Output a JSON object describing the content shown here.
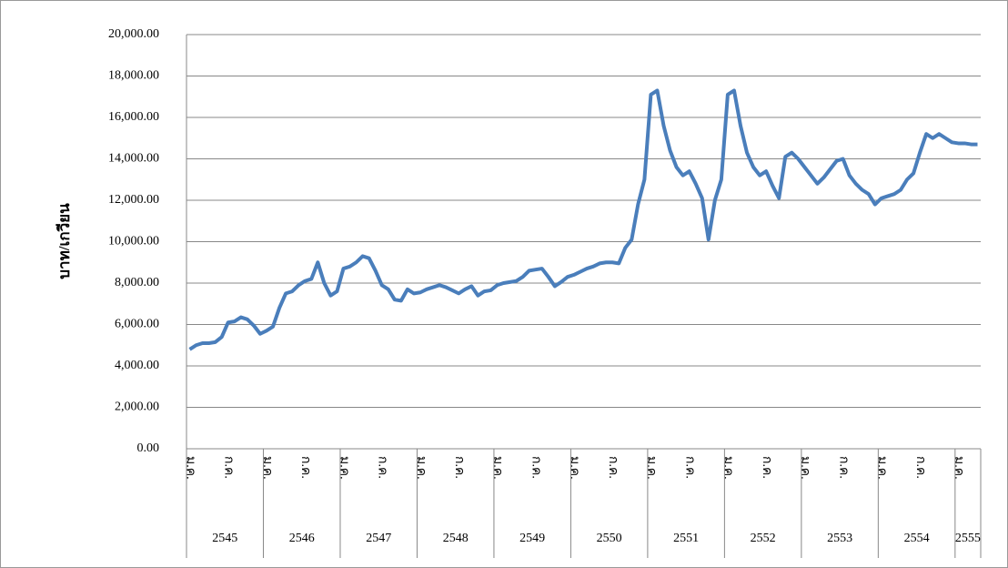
{
  "chart_data": {
    "type": "line",
    "y_label": "บาท/เกวียน",
    "color": "#4a7ebb",
    "grid": true,
    "ylim": [
      0,
      20000
    ],
    "yticks": [
      {
        "value": 0,
        "label": "0.00"
      },
      {
        "value": 2000,
        "label": "2,000.00"
      },
      {
        "value": 4000,
        "label": "4,000.00"
      },
      {
        "value": 6000,
        "label": "6,000.00"
      },
      {
        "value": 8000,
        "label": "8,000.00"
      },
      {
        "value": 10000,
        "label": "10,000.00"
      },
      {
        "value": 12000,
        "label": "12,000.00"
      },
      {
        "value": 14000,
        "label": "14,000.00"
      },
      {
        "value": 16000,
        "label": "16,000.00"
      },
      {
        "value": 18000,
        "label": "18,000.00"
      },
      {
        "value": 20000,
        "label": "20,000.00"
      }
    ],
    "categories": [
      "ม.ค.",
      null,
      null,
      null,
      null,
      null,
      "ก.ค.",
      null,
      null,
      null,
      null,
      null,
      "ม.ค.",
      null,
      null,
      null,
      null,
      null,
      "ก.ค.",
      null,
      null,
      null,
      null,
      null,
      "ม.ค.",
      null,
      null,
      null,
      null,
      null,
      "ก.ค.",
      null,
      null,
      null,
      null,
      null,
      "ม.ค.",
      null,
      null,
      null,
      null,
      null,
      "ก.ค.",
      null,
      null,
      null,
      null,
      null,
      "ม.ค.",
      null,
      null,
      null,
      null,
      null,
      "ก.ค.",
      null,
      null,
      null,
      null,
      null,
      "ม.ค.",
      null,
      null,
      null,
      null,
      null,
      "ก.ค.",
      null,
      null,
      null,
      null,
      null,
      "ม.ค.",
      null,
      null,
      null,
      null,
      null,
      "ก.ค.",
      null,
      null,
      null,
      null,
      null,
      "ม.ค.",
      null,
      null,
      null,
      null,
      null,
      "ก.ค.",
      null,
      null,
      null,
      null,
      null,
      "ม.ค.",
      null,
      null,
      null,
      null,
      null,
      "ก.ค.",
      null,
      null,
      null,
      null,
      null,
      "ม.ค.",
      null,
      null,
      null,
      null,
      null,
      "ก.ค.",
      null,
      null,
      null,
      null,
      null,
      "ม.ค.",
      null,
      null,
      null
    ],
    "category_groups": [
      "2545",
      null,
      null,
      null,
      null,
      null,
      null,
      null,
      null,
      null,
      null,
      null,
      "2546",
      null,
      null,
      null,
      null,
      null,
      null,
      null,
      null,
      null,
      null,
      null,
      "2547",
      null,
      null,
      null,
      null,
      null,
      null,
      null,
      null,
      null,
      null,
      null,
      "2548",
      null,
      null,
      null,
      null,
      null,
      null,
      null,
      null,
      null,
      null,
      null,
      "2549",
      null,
      null,
      null,
      null,
      null,
      null,
      null,
      null,
      null,
      null,
      null,
      "2550",
      null,
      null,
      null,
      null,
      null,
      null,
      null,
      null,
      null,
      null,
      null,
      "2551",
      null,
      null,
      null,
      null,
      null,
      null,
      null,
      null,
      null,
      null,
      null,
      "2552",
      null,
      null,
      null,
      null,
      null,
      null,
      null,
      null,
      null,
      null,
      null,
      "2553",
      null,
      null,
      null,
      null,
      null,
      null,
      null,
      null,
      null,
      null,
      null,
      "2554",
      null,
      null,
      null,
      null,
      null,
      null,
      null,
      null,
      null,
      null,
      null,
      "2555",
      null,
      null,
      null
    ],
    "values": [
      4800,
      5000,
      5100,
      5100,
      5150,
      5400,
      6100,
      6150,
      6350,
      6250,
      5950,
      5550,
      5700,
      5900,
      6800,
      7500,
      7600,
      7900,
      8100,
      8200,
      9000,
      8000,
      7400,
      7600,
      8700,
      8800,
      9000,
      9300,
      9200,
      8600,
      7900,
      7700,
      7200,
      7150,
      7700,
      7500,
      7550,
      7700,
      7800,
      7900,
      7800,
      7650,
      7500,
      7700,
      7850,
      7400,
      7600,
      7650,
      7900,
      8000,
      8050,
      8100,
      8300,
      8600,
      8650,
      8700,
      8300,
      7850,
      8050,
      8300,
      8400,
      8550,
      8700,
      8800,
      8950,
      9000,
      9000,
      8950,
      9700,
      10100,
      11800,
      13000,
      17100,
      17300,
      15600,
      14400,
      13600,
      13200,
      13400,
      12800,
      12100,
      10100,
      12000,
      13000,
      17100,
      17300,
      15600,
      14300,
      13600,
      13200,
      13400,
      12700,
      12100,
      14100,
      14300,
      14000,
      13600,
      13200,
      12800,
      13100,
      13500,
      13900,
      14000,
      13200,
      12800,
      12500,
      12300,
      11800,
      12100,
      12200,
      12300,
      12500,
      13000,
      13300,
      14300,
      15200,
      15000,
      15200,
      15000,
      14800,
      14750,
      14750,
      14700,
      14700
    ]
  }
}
